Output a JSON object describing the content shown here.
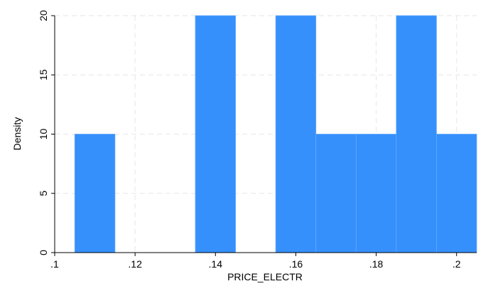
{
  "chart_data": {
    "type": "bar",
    "xlabel": "PRICE_ELECTR",
    "ylabel": "Density",
    "xlim": [
      0.1,
      0.205
    ],
    "ylim": [
      0,
      20
    ],
    "grid": true,
    "bar_color": "#3590fc",
    "bins": [
      {
        "x0": 0.105,
        "x1": 0.115,
        "density": 10
      },
      {
        "x0": 0.135,
        "x1": 0.145,
        "density": 20
      },
      {
        "x0": 0.155,
        "x1": 0.165,
        "density": 20
      },
      {
        "x0": 0.165,
        "x1": 0.175,
        "density": 10
      },
      {
        "x0": 0.175,
        "x1": 0.185,
        "density": 10
      },
      {
        "x0": 0.185,
        "x1": 0.195,
        "density": 20
      },
      {
        "x0": 0.195,
        "x1": 0.205,
        "density": 10
      }
    ],
    "x_ticks": [
      {
        "value": 0.1,
        "label": ".1"
      },
      {
        "value": 0.12,
        "label": ".12"
      },
      {
        "value": 0.14,
        "label": ".14"
      },
      {
        "value": 0.16,
        "label": ".16"
      },
      {
        "value": 0.18,
        "label": ".18"
      },
      {
        "value": 0.2,
        "label": ".2"
      }
    ],
    "y_ticks": [
      {
        "value": 0,
        "label": "0"
      },
      {
        "value": 5,
        "label": "5"
      },
      {
        "value": 10,
        "label": "10"
      },
      {
        "value": 15,
        "label": "15"
      },
      {
        "value": 20,
        "label": "20"
      }
    ]
  }
}
